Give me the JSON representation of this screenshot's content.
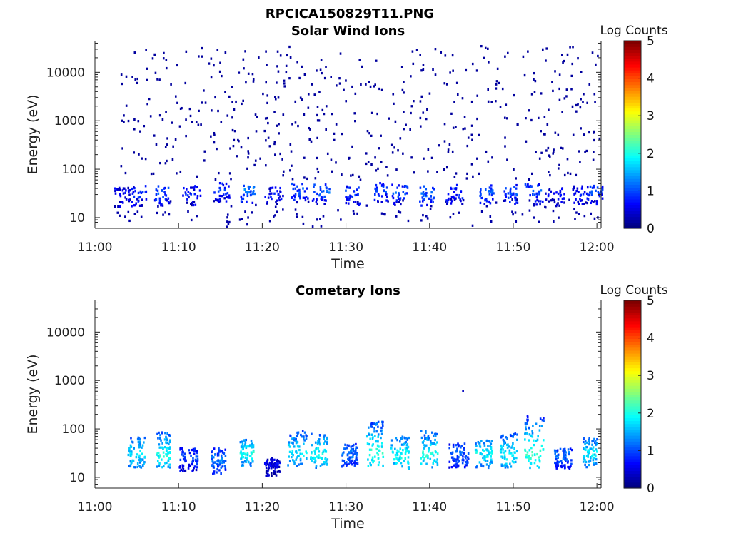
{
  "figure_title": "RPCICA150829T11.PNG",
  "chart_data": [
    {
      "type": "heatmap",
      "title": "Solar Wind Ions",
      "xlabel": "Time",
      "ylabel": "Energy (eV)",
      "x_ticks": [
        "11:00",
        "11:10",
        "11:20",
        "11:30",
        "11:40",
        "11:50",
        "12:00"
      ],
      "x_range_minutes": [
        0,
        60.5
      ],
      "y_scale": "log",
      "y_ticks": [
        10,
        100,
        1000,
        10000
      ],
      "y_ticklabels": [
        "10",
        "100",
        "1000",
        "10000"
      ],
      "y_range": [
        6,
        45000
      ],
      "colorbar": {
        "label": "Log Counts",
        "range": [
          0,
          5
        ],
        "ticks": [
          "0",
          "1",
          "2",
          "3",
          "4",
          "5"
        ]
      },
      "description": "Sparse single counts (log counts ~0-0.5) scattered 10 eV to 30000 eV; denser patches (log counts ~0.5-1.2) near 25-45 eV roughly every 2-3 minutes from 11:03 to 12:00.",
      "blobs": [
        {
          "t": 3.3,
          "e": 30,
          "v": 0.6
        },
        {
          "t": 5.3,
          "e": 32,
          "v": 0.8
        },
        {
          "t": 8.0,
          "e": 33,
          "v": 1.0
        },
        {
          "t": 11.6,
          "e": 32,
          "v": 0.7
        },
        {
          "t": 15.3,
          "e": 38,
          "v": 0.8
        },
        {
          "t": 18.3,
          "e": 38,
          "v": 1.2
        },
        {
          "t": 21.5,
          "e": 30,
          "v": 0.6
        },
        {
          "t": 24.5,
          "e": 38,
          "v": 1.0
        },
        {
          "t": 27.0,
          "e": 35,
          "v": 1.1
        },
        {
          "t": 30.8,
          "e": 34,
          "v": 0.9
        },
        {
          "t": 34.2,
          "e": 38,
          "v": 0.9
        },
        {
          "t": 36.5,
          "e": 34,
          "v": 1.0
        },
        {
          "t": 39.7,
          "e": 33,
          "v": 1.1
        },
        {
          "t": 43.0,
          "e": 34,
          "v": 0.8
        },
        {
          "t": 46.8,
          "e": 34,
          "v": 1.1
        },
        {
          "t": 49.8,
          "e": 34,
          "v": 1.0
        },
        {
          "t": 52.5,
          "e": 35,
          "v": 1.0
        },
        {
          "t": 55.0,
          "e": 30,
          "v": 0.6
        },
        {
          "t": 58.0,
          "e": 34,
          "v": 0.7
        },
        {
          "t": 59.8,
          "e": 34,
          "v": 0.9
        }
      ],
      "scatter_energy_range": [
        60,
        35000
      ]
    },
    {
      "type": "heatmap",
      "title": "Cometary Ions",
      "xlabel": "Time",
      "ylabel": "Energy (eV)",
      "x_ticks": [
        "11:00",
        "11:10",
        "11:20",
        "11:30",
        "11:40",
        "11:50",
        "12:00"
      ],
      "x_range_minutes": [
        0,
        60.5
      ],
      "y_scale": "log",
      "y_ticks": [
        10,
        100,
        1000,
        10000
      ],
      "y_ticklabels": [
        "10",
        "100",
        "1000",
        "10000"
      ],
      "y_range": [
        6,
        45000
      ],
      "colorbar": {
        "label": "Log Counts",
        "range": [
          0,
          5
        ],
        "ticks": [
          "0",
          "1",
          "2",
          "3",
          "4",
          "5"
        ]
      },
      "description": "Bursts of counts between ~12 and ~200 eV peaking at log counts ~2 near 25-35 eV, recurring every ~2-3 minutes; a single count near 600 eV at ~11:44.",
      "blobs": [
        {
          "t": 5.0,
          "e": 30,
          "v": 1.8,
          "top": 70
        },
        {
          "t": 8.2,
          "e": 30,
          "v": 2.0,
          "top": 85
        },
        {
          "t": 11.2,
          "e": 25,
          "v": 0.9,
          "top": 40
        },
        {
          "t": 14.8,
          "e": 22,
          "v": 1.2,
          "top": 40
        },
        {
          "t": 18.2,
          "e": 32,
          "v": 2.0,
          "top": 60
        },
        {
          "t": 21.2,
          "e": 20,
          "v": 0.5,
          "top": 25
        },
        {
          "t": 24.2,
          "e": 32,
          "v": 1.8,
          "top": 90
        },
        {
          "t": 26.8,
          "e": 30,
          "v": 2.0,
          "top": 80
        },
        {
          "t": 30.5,
          "e": 30,
          "v": 1.2,
          "top": 50
        },
        {
          "t": 33.5,
          "e": 32,
          "v": 2.1,
          "top": 150
        },
        {
          "t": 36.5,
          "e": 28,
          "v": 2.0,
          "top": 70
        },
        {
          "t": 40.0,
          "e": 30,
          "v": 2.0,
          "top": 90
        },
        {
          "t": 43.5,
          "e": 30,
          "v": 1.1,
          "top": 50
        },
        {
          "t": 46.5,
          "e": 30,
          "v": 1.9,
          "top": 60
        },
        {
          "t": 49.5,
          "e": 30,
          "v": 1.9,
          "top": 80
        },
        {
          "t": 52.5,
          "e": 30,
          "v": 2.1,
          "top": 190
        },
        {
          "t": 56.0,
          "e": 28,
          "v": 1.2,
          "top": 40
        },
        {
          "t": 59.2,
          "e": 30,
          "v": 1.8,
          "top": 70
        }
      ],
      "isolated_points": [
        {
          "t": 44.0,
          "e": 600,
          "v": 0.3
        }
      ]
    }
  ]
}
